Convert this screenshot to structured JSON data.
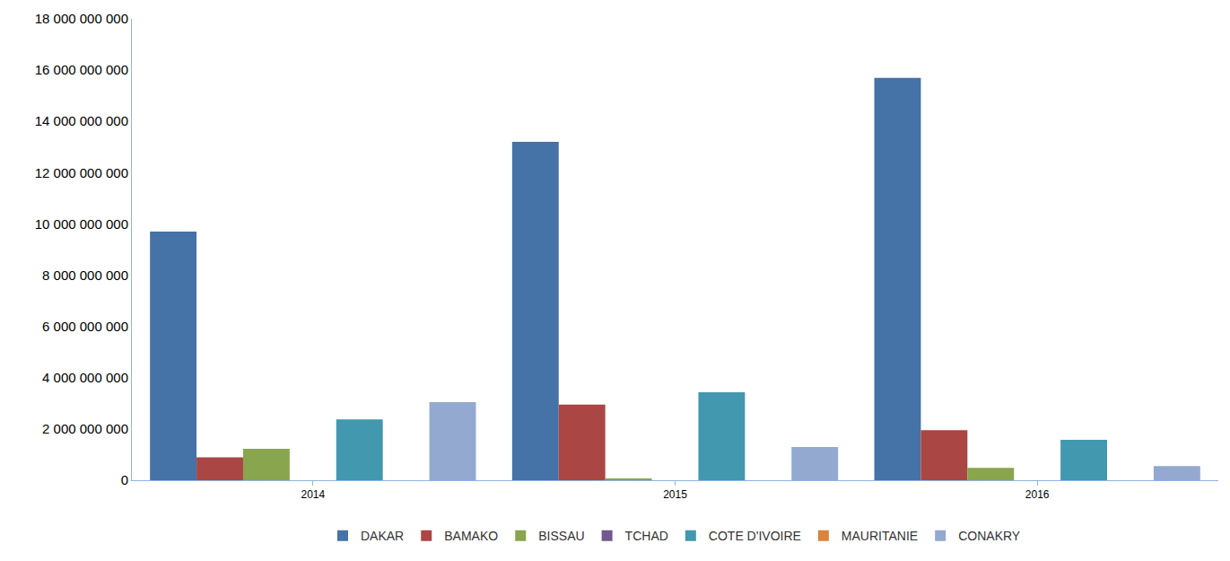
{
  "chart_data": {
    "type": "bar",
    "categories": [
      "2014",
      "2015",
      "2016"
    ],
    "series": [
      {
        "name": "DAKAR",
        "color": "#4572A7",
        "values": [
          9700000000,
          13200000000,
          15700000000
        ]
      },
      {
        "name": "BAMAKO",
        "color": "#AA4643",
        "values": [
          890000000,
          2950000000,
          1950000000
        ]
      },
      {
        "name": "BISSAU",
        "color": "#89A54E",
        "values": [
          1230000000,
          70000000,
          480000000
        ]
      },
      {
        "name": "TCHAD",
        "color": "#71588F",
        "values": [
          0,
          0,
          0
        ]
      },
      {
        "name": "COTE D'IVOIRE",
        "color": "#4198AF",
        "values": [
          2370000000,
          3430000000,
          1580000000
        ]
      },
      {
        "name": "MAURITANIE",
        "color": "#DB843D",
        "values": [
          0,
          0,
          0
        ]
      },
      {
        "name": "CONAKRY",
        "color": "#93A9CF",
        "values": [
          3050000000,
          1300000000,
          550000000
        ]
      }
    ],
    "ylim": [
      0,
      18000000000
    ],
    "yticks": [
      0,
      {
        "value": 2000000000,
        "label": "2 000 000 000"
      },
      {
        "value": 4000000000,
        "label": "4 000 000 000"
      },
      {
        "value": 6000000000,
        "label": "6 000 000 000"
      },
      {
        "value": 8000000000,
        "label": "8 000 000 000"
      },
      {
        "value": 10000000000,
        "label": "10 000 000 000"
      },
      {
        "value": 12000000000,
        "label": "12 000 000 000"
      },
      {
        "value": 14000000000,
        "label": "14 000 000 000"
      },
      {
        "value": 16000000000,
        "label": "16 000 000 000"
      },
      {
        "value": 18000000000,
        "label": "18 000 000 000"
      }
    ],
    "grid": false,
    "legend": "bottom"
  }
}
